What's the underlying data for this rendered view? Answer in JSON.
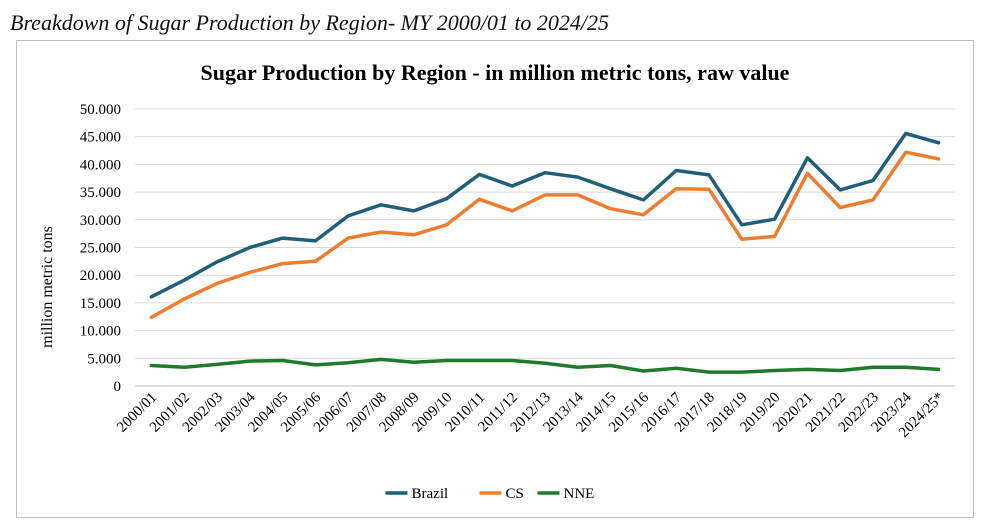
{
  "caption": "Breakdown of Sugar Production by Region- MY 2000/01 to 2024/25",
  "colors": {
    "brazil": "#1f5f7a",
    "cs": "#ed7d31",
    "nne": "#217a2b",
    "grid": "#d9d9d9",
    "frame": "#bfbfbf"
  },
  "chart_data": {
    "type": "line",
    "title": "Sugar Production by Region - in million metric tons, raw value",
    "xlabel": "",
    "ylabel": "million metric tons",
    "ylim": [
      0,
      50000
    ],
    "yticks": [
      "0",
      "5.000",
      "10.000",
      "15.000",
      "20.000",
      "25.000",
      "30.000",
      "35.000",
      "40.000",
      "45.000",
      "50.000"
    ],
    "grid": true,
    "legend_position": "bottom",
    "categories": [
      "2000/01",
      "2001/02",
      "2002/03",
      "2003/04",
      "2004/05",
      "2005/06",
      "2006/07",
      "2007/08",
      "2008/09",
      "2009/10",
      "2010/11",
      "2011/12",
      "2012/13",
      "2013/14",
      "2014/15",
      "2015/16",
      "2016/17",
      "2017/18",
      "2018/19",
      "2019/20",
      "2020/21",
      "2021/22",
      "2022/23",
      "2023/24",
      "2024/25*"
    ],
    "series": [
      {
        "name": "Brazil",
        "color": "#1f5f7a",
        "values": [
          16100,
          19100,
          22400,
          25000,
          26700,
          26200,
          30700,
          32700,
          31600,
          33800,
          38200,
          36100,
          38500,
          37700,
          35600,
          33600,
          38900,
          38100,
          29100,
          30100,
          41200,
          35400,
          37100,
          45600,
          43900
        ]
      },
      {
        "name": "CS",
        "color": "#ed7d31",
        "values": [
          12400,
          15700,
          18500,
          20500,
          22100,
          22500,
          26700,
          27800,
          27300,
          29100,
          33700,
          31600,
          34500,
          34500,
          32000,
          30900,
          35600,
          35500,
          26500,
          27000,
          38400,
          32200,
          33600,
          42200,
          41000
        ]
      },
      {
        "name": "NNE",
        "color": "#217a2b",
        "values": [
          3700,
          3400,
          3900,
          4500,
          4600,
          3800,
          4200,
          4800,
          4300,
          4600,
          4600,
          4600,
          4100,
          3400,
          3700,
          2700,
          3200,
          2500,
          2500,
          2800,
          3000,
          2800,
          3400,
          3400,
          3000
        ]
      }
    ]
  }
}
